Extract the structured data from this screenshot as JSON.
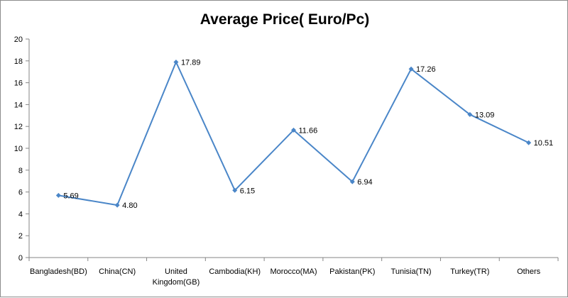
{
  "chart_data": {
    "type": "line",
    "title": "Average Price( Euro/Pc)",
    "xlabel": "",
    "ylabel": "",
    "categories": [
      "Bangladesh(BD)",
      "China(CN)",
      "United Kingdom(GB)",
      "Cambodia(KH)",
      "Morocco(MA)",
      "Pakistan(PK)",
      "Tunisia(TN)",
      "Turkey(TR)",
      "Others"
    ],
    "category_lines": [
      [
        "Bangladesh(BD)"
      ],
      [
        "China(CN)"
      ],
      [
        "United",
        "Kingdom(GB)"
      ],
      [
        "Cambodia(KH)"
      ],
      [
        "Morocco(MA)"
      ],
      [
        "Pakistan(PK)"
      ],
      [
        "Tunisia(TN)"
      ],
      [
        "Turkey(TR)"
      ],
      [
        "Others"
      ]
    ],
    "series": [
      {
        "values": [
          5.69,
          4.8,
          17.89,
          6.15,
          11.66,
          6.94,
          17.26,
          13.09,
          10.51
        ],
        "labels": [
          "5.69",
          "4.80",
          "17.89",
          "6.15",
          "11.66",
          "6.94",
          "17.26",
          "13.09",
          "10.51"
        ],
        "color": "#4a86c8"
      }
    ],
    "ylim": [
      0,
      20
    ],
    "yticks": [
      "0",
      "2",
      "4",
      "6",
      "8",
      "10",
      "12",
      "14",
      "16",
      "18",
      "20"
    ],
    "grid": false,
    "legend": "none",
    "marker": "diamond"
  }
}
